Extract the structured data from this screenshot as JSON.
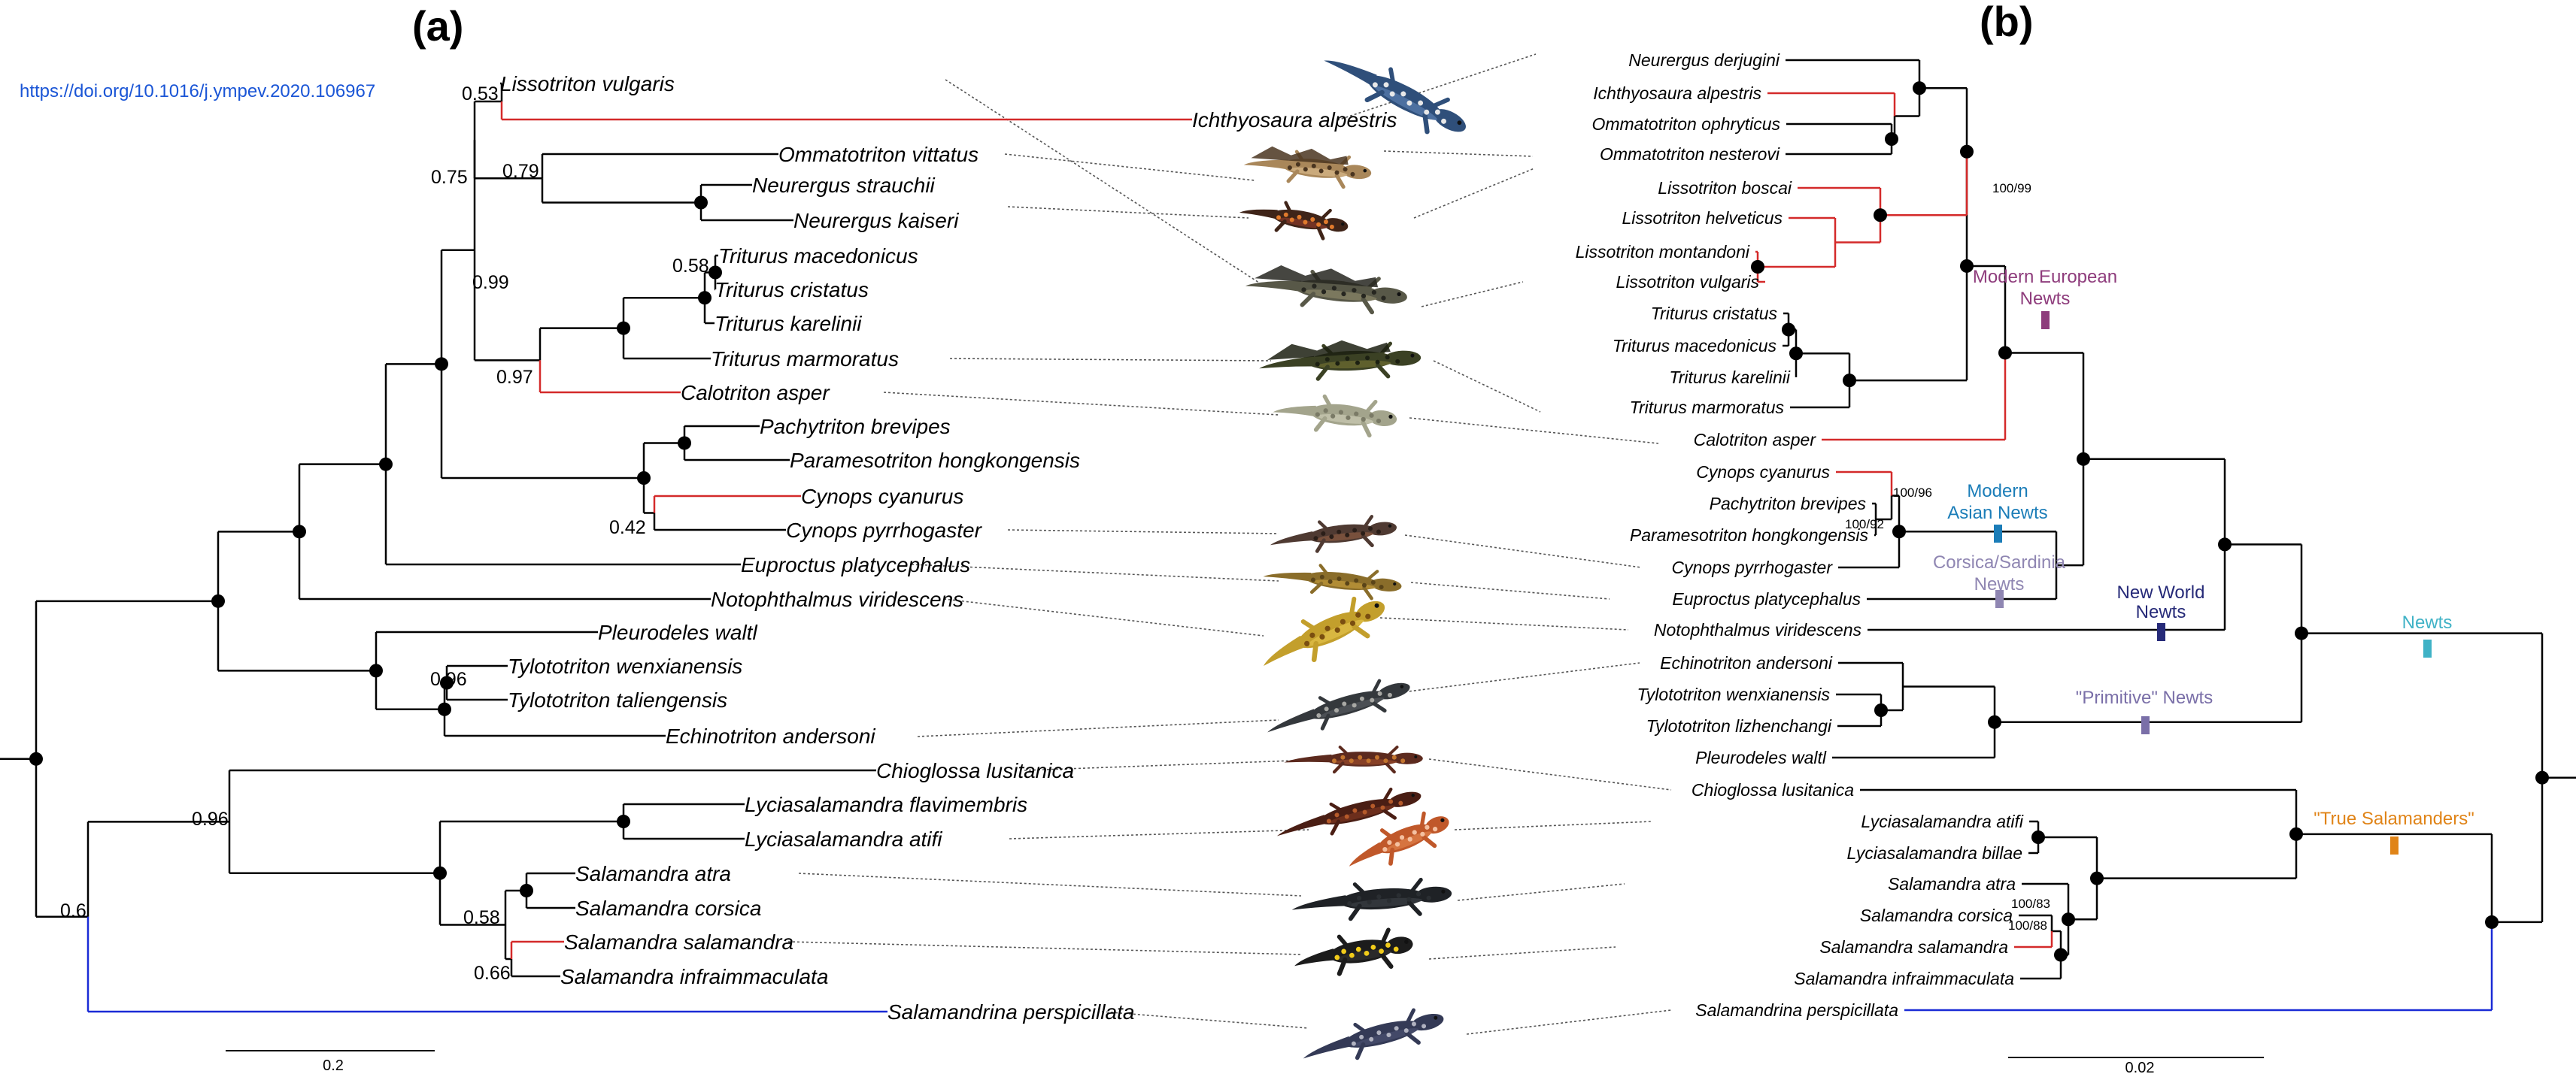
{
  "doi": "https://doi.org/10.1016/j.ympev.2020.106967",
  "panel_a_label": "(a)",
  "panel_b_label": "(b)",
  "tree_a": {
    "taxa": [
      "Lissotriton vulgaris",
      "Ichthyosaura alpestris",
      "Ommatotriton vittatus",
      "Neurergus strauchii",
      "Neurergus kaiseri",
      "Triturus macedonicus",
      "Triturus cristatus",
      "Triturus karelinii",
      "Triturus marmoratus",
      "Calotriton asper",
      "Pachytriton brevipes",
      "Paramesotriton hongkongensis",
      "Cynops cyanurus",
      "Cynops pyrrhogaster",
      "Euproctus platycephalus",
      "Notophthalmus viridescens",
      "Pleurodeles waltl",
      "Tylototriton wenxianensis",
      "Tylototriton taliengensis",
      "Echinotriton andersoni",
      "Chioglossa lusitanica",
      "Lyciasalamandra flavimembris",
      "Lyciasalamandra atifi",
      "Salamandra atra",
      "Salamandra corsica",
      "Salamandra salamandra",
      "Salamandra infraimmaculata",
      "Salamandrina perspicillata"
    ],
    "supports": [
      "0.53",
      "0.75",
      "0.79",
      "0.99",
      "0.58",
      "0.97",
      "0.42",
      "0.96",
      "0.96",
      "0.58",
      "0.66",
      "0.6"
    ],
    "scale_label": "0.2"
  },
  "tree_b": {
    "taxa": [
      "Neurergus derjugini",
      "Ichthyosaura alpestris",
      "Ommatotriton ophryticus",
      "Ommatotriton nesterovi",
      "Lissotriton boscai",
      "Lissotriton helveticus",
      "Lissotriton montandoni",
      "Lissotriton vulgaris",
      "Triturus cristatus",
      "Triturus macedonicus",
      "Triturus karelinii",
      "Triturus marmoratus",
      "Calotriton asper",
      "Cynops cyanurus",
      "Pachytriton brevipes",
      "Paramesotriton hongkongensis",
      "Cynops pyrrhogaster",
      "Euproctus platycephalus",
      "Notophthalmus viridescens",
      "Echinotriton andersoni",
      "Tylototriton wenxianensis",
      "Tylototriton lizhenchangi",
      "Pleurodeles waltl",
      "Chioglossa lusitanica",
      "Lyciasalamandra atifi",
      "Lyciasalamandra billae",
      "Salamandra atra",
      "Salamandra corsica",
      "Salamandra salamandra",
      "Salamandra infraimmaculata",
      "Salamandrina perspicillata"
    ],
    "supports": [
      "100/99",
      "100/96",
      "100/92",
      "100/83",
      "100/88"
    ],
    "scale_label": "0.02"
  },
  "groups": [
    {
      "line1": "Modern European",
      "line2": "Newts",
      "color": "#8e3c7c"
    },
    {
      "line1": "Modern",
      "line2": "Asian Newts",
      "color": "#1b7db8"
    },
    {
      "line1": "Corsica/Sardinia",
      "line2": "Newts",
      "color": "#8f86b2"
    },
    {
      "line1": "New World",
      "line2": "Newts",
      "color": "#262a78"
    },
    {
      "line1": "\"Primitive\" Newts",
      "line2": "",
      "color": "#7a6fa8"
    },
    {
      "line1": "Newts",
      "line2": "",
      "color": "#3fb2c6"
    },
    {
      "line1": "\"True Salamanders\"",
      "line2": "",
      "color": "#e08418"
    }
  ],
  "colors": {
    "branch": "#000000",
    "highlight_red": "#d42a2a",
    "highlight_blue": "#1a2bd6",
    "connector": "#555555"
  },
  "icons": [
    "newt-illustration",
    "salamander-illustration"
  ]
}
